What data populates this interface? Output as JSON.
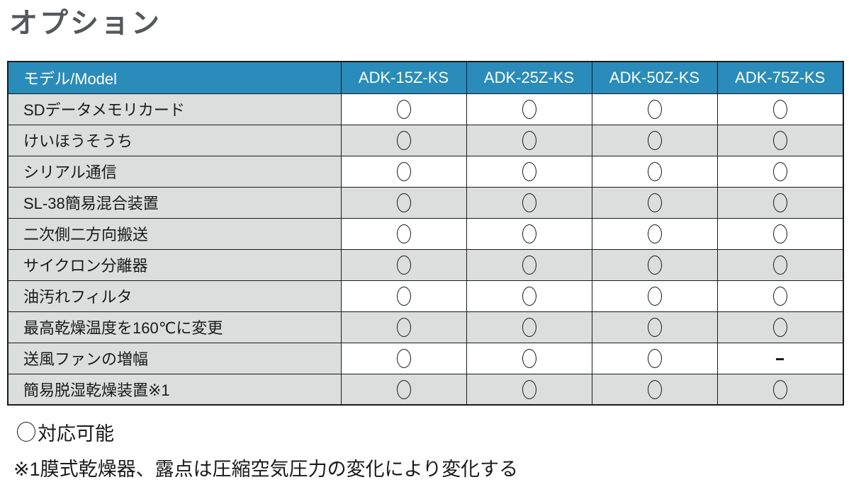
{
  "page": {
    "title": "オプション"
  },
  "table": {
    "columns": [
      "モデル/Model",
      "ADK-15Z-KS",
      "ADK-25Z-KS",
      "ADK-50Z-KS",
      "ADK-75Z-KS"
    ],
    "rows": [
      {
        "label": "SDデータメモリカード",
        "values": [
          "○",
          "○",
          "○",
          "○"
        ]
      },
      {
        "label": "けいほうそうち",
        "values": [
          "○",
          "○",
          "○",
          "○"
        ]
      },
      {
        "label": "シリアル通信",
        "values": [
          "○",
          "○",
          "○",
          "○"
        ]
      },
      {
        "label": "SL-38簡易混合装置",
        "values": [
          "○",
          "○",
          "○",
          "○"
        ]
      },
      {
        "label": "二次側二方向搬送",
        "values": [
          "○",
          "○",
          "○",
          "○"
        ]
      },
      {
        "label": "サイクロン分離器",
        "values": [
          "○",
          "○",
          "○",
          "○"
        ]
      },
      {
        "label": "油汚れフィルタ",
        "values": [
          "○",
          "○",
          "○",
          "○"
        ]
      },
      {
        "label": "最高乾燥温度を160℃に変更",
        "values": [
          "○",
          "○",
          "○",
          "○"
        ]
      },
      {
        "label": "送風ファンの増幅",
        "values": [
          "○",
          "○",
          "○",
          "-"
        ]
      },
      {
        "label": "簡易脱湿乾燥装置※1",
        "values": [
          "○",
          "○",
          "○",
          "○"
        ]
      }
    ]
  },
  "notes": {
    "legend_symbol": "○",
    "legend_text": "対応可能",
    "footnote": "※1膜式乾燥器、露点は圧縮空気圧力の変化により変化する"
  },
  "colors": {
    "header_bg": "#2a8cbb",
    "stripe_gray": "#dcdddd",
    "border": "#1a1a1a",
    "title": "#54585b"
  }
}
